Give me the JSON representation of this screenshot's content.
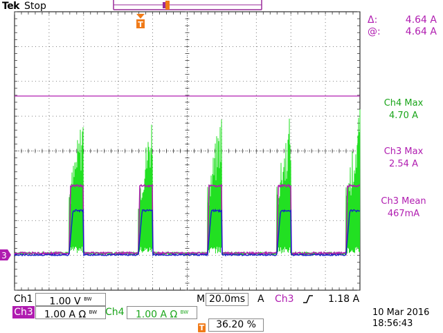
{
  "header": {
    "brand": "Tek",
    "state": "Stop"
  },
  "cursor_readout": {
    "delta_symbol": "Δ:",
    "delta_value": "4.64 A",
    "at_symbol": "@:",
    "at_value": "4.64 A"
  },
  "measurements": [
    {
      "label": "Ch4 Max",
      "value": "4.70 A",
      "color": "#1aa51a"
    },
    {
      "label": "Ch3 Max",
      "value": "2.54 A",
      "color": "#b01cb0"
    },
    {
      "label": "Ch3 Mean",
      "value": "467mA",
      "color": "#b01cb0"
    }
  ],
  "ground_marker": "3",
  "trigger_marker_letter": "T",
  "channels": {
    "ch1": {
      "label": "Ch1",
      "scale": "1.00 V",
      "bw": "B_W"
    },
    "ch3": {
      "label": "Ch3",
      "scale": "1.00 A Ω",
      "bw": "B_W",
      "color": "#b01cb0"
    },
    "ch4": {
      "label": "Ch4",
      "scale": "1.00 A Ω",
      "bw": "B_W",
      "color": "#1aa51a"
    }
  },
  "timebase": {
    "prefix": "M",
    "value": "20.0ms",
    "coupling": "A"
  },
  "trigger": {
    "source": "Ch3",
    "slope_icon": "rising-edge-icon",
    "level": "1.18 A",
    "position_icon": "T",
    "position": "36.20 %"
  },
  "timestamp": {
    "date": "10 Mar  2016",
    "time": "18:56:43"
  },
  "colors": {
    "grid": "#000000",
    "ch3": "#b01cb0",
    "ch4": "#22e022",
    "ch1": "#1a1acc",
    "trigger_orange": "#f07a18"
  }
}
